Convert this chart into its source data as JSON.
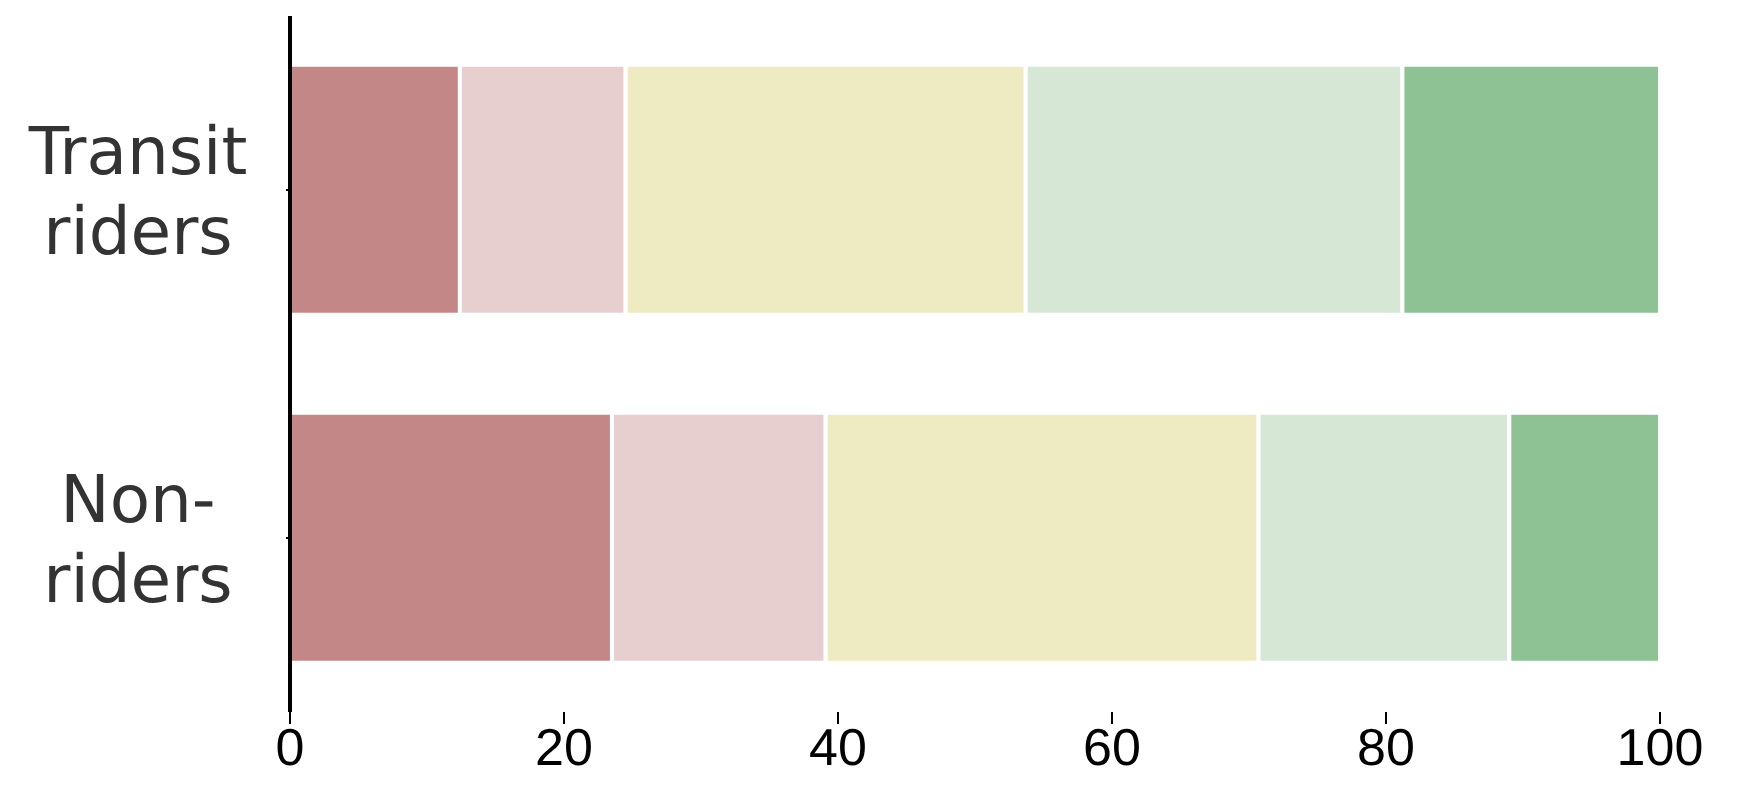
{
  "chart_data": {
    "type": "bar",
    "orientation": "horizontal",
    "stacked": true,
    "categories": [
      "Transit riders",
      "Non-riders"
    ],
    "series": [
      {
        "color": "#c48787",
        "values": [
          12.4,
          23.5
        ]
      },
      {
        "color": "#e8cfcf",
        "values": [
          12.1,
          15.6
        ]
      },
      {
        "color": "#eeebc2",
        "values": [
          29.2,
          31.6
        ]
      },
      {
        "color": "#d6e7d6",
        "values": [
          27.5,
          18.3
        ]
      },
      {
        "color": "#8ec295",
        "values": [
          18.8,
          11.0
        ]
      }
    ],
    "xlim": [
      0,
      100
    ],
    "xticks": [
      0,
      20,
      40,
      60,
      80,
      100
    ],
    "grid": false,
    "legend": false
  }
}
